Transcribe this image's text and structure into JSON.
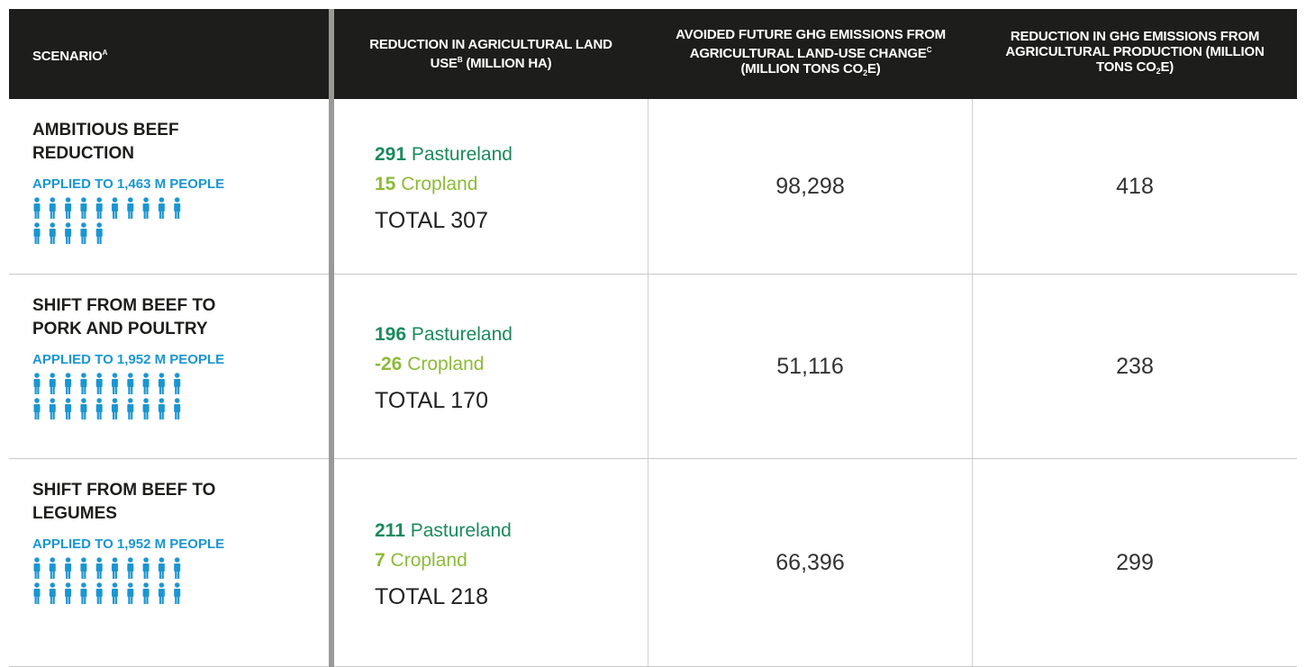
{
  "table": {
    "header": [
      [
        {
          "text": "SCENARIO"
        },
        {
          "sup": "A"
        }
      ],
      [
        {
          "text": "REDUCTION IN AGRICULTURAL LAND USE"
        },
        {
          "sup": "B"
        },
        {
          "text": " (MILLION HA)"
        }
      ],
      [
        {
          "text": "AVOIDED FUTURE GHG EMISSIONS FROM AGRICULTURAL LAND-USE CHANGE"
        },
        {
          "sup": "C"
        },
        {
          "text": " (MILLION TONS CO"
        },
        {
          "sub": "2"
        },
        {
          "text": "E)"
        }
      ],
      [
        {
          "text": "REDUCTION IN GHG EMISSIONS FROM AGRICULTURAL PRODUCTION (MILLION TONS CO"
        },
        {
          "sub": "2"
        },
        {
          "text": "E)"
        }
      ]
    ],
    "rows": [
      {
        "scenario": "AMBITIOUS BEEF REDUCTION",
        "applied": "APPLIED TO 1,463 M PEOPLE",
        "pasture": {
          "value": "291",
          "label": "Pastureland"
        },
        "crop": {
          "value": "15",
          "label": "Cropland"
        },
        "total": "TOTAL 307",
        "avoided": "98,298",
        "reduction": "418"
      },
      {
        "scenario": "SHIFT FROM BEEF TO PORK AND POULTRY",
        "applied": "APPLIED TO 1,952 M PEOPLE",
        "pasture": {
          "value": "196",
          "label": "Pastureland"
        },
        "crop": {
          "value": "-26",
          "label": "Cropland"
        },
        "total": "TOTAL 170",
        "avoided": "51,116",
        "reduction": "238"
      },
      {
        "scenario": "SHIFT FROM BEEF TO LEGUMES",
        "applied": "APPLIED TO 1,952 M PEOPLE",
        "pasture": {
          "value": "211",
          "label": "Pastureland"
        },
        "crop": {
          "value": "7",
          "label": "Cropland"
        },
        "total": "TOTAL 218",
        "avoided": "66,396",
        "reduction": "299"
      }
    ]
  }
}
